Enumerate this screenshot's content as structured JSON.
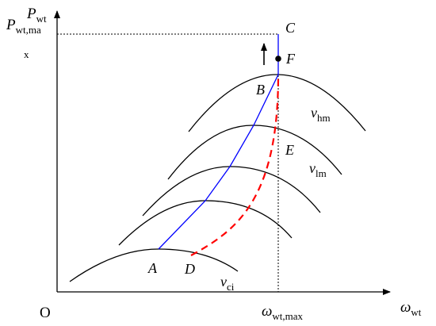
{
  "axes": {
    "origin": "O",
    "y_var": "P",
    "y_sub": "wt",
    "y_max_var": "P",
    "y_max_sub": "wt,ma",
    "y_max_wrap": "x",
    "x_var": "ω",
    "x_sub": "wt",
    "x_max_var": "ω",
    "x_max_sub": "wt,max"
  },
  "points": {
    "A": "A",
    "B": "B",
    "C": "C",
    "D": "D",
    "E": "E",
    "F": "F"
  },
  "curve_labels": {
    "hm_var": "v",
    "hm_sub": "hm",
    "lm_var": "v",
    "lm_sub": "lm",
    "ci_var": "v",
    "ci_sub": "ci"
  },
  "colors": {
    "mppt_path": "#0000ff",
    "alt_path": "#ff0000",
    "curves": "#000000"
  }
}
